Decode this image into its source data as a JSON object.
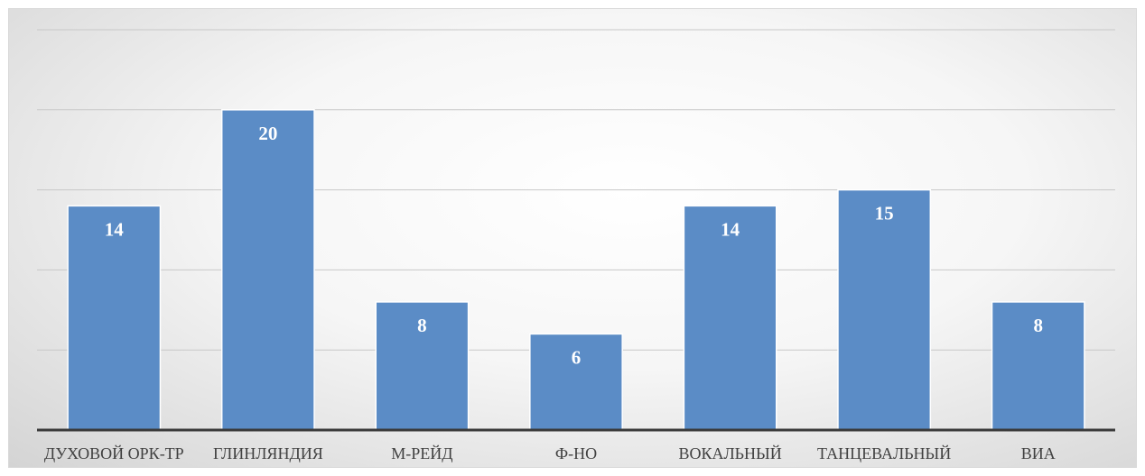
{
  "chart_data": {
    "type": "bar",
    "title": "",
    "xlabel": "",
    "ylabel": "",
    "categories": [
      "ДУХОВОЙ ОРК-ТР",
      "ГЛИНЛЯНДИЯ",
      "М-РЕЙД",
      "Ф-НО",
      "ВОКАЛЬНЫЙ",
      "ТАНЦЕВАЛЬНЫЙ",
      "ВИА"
    ],
    "values": [
      14,
      20,
      8,
      6,
      14,
      15,
      8
    ],
    "ylim": [
      0,
      25
    ],
    "grid": true,
    "legend": "none",
    "colors": {
      "bar": "#5b8cc6",
      "data_label": "#ffffff",
      "axis": "#3a3a3a",
      "grid": "#c8c8c8"
    }
  }
}
